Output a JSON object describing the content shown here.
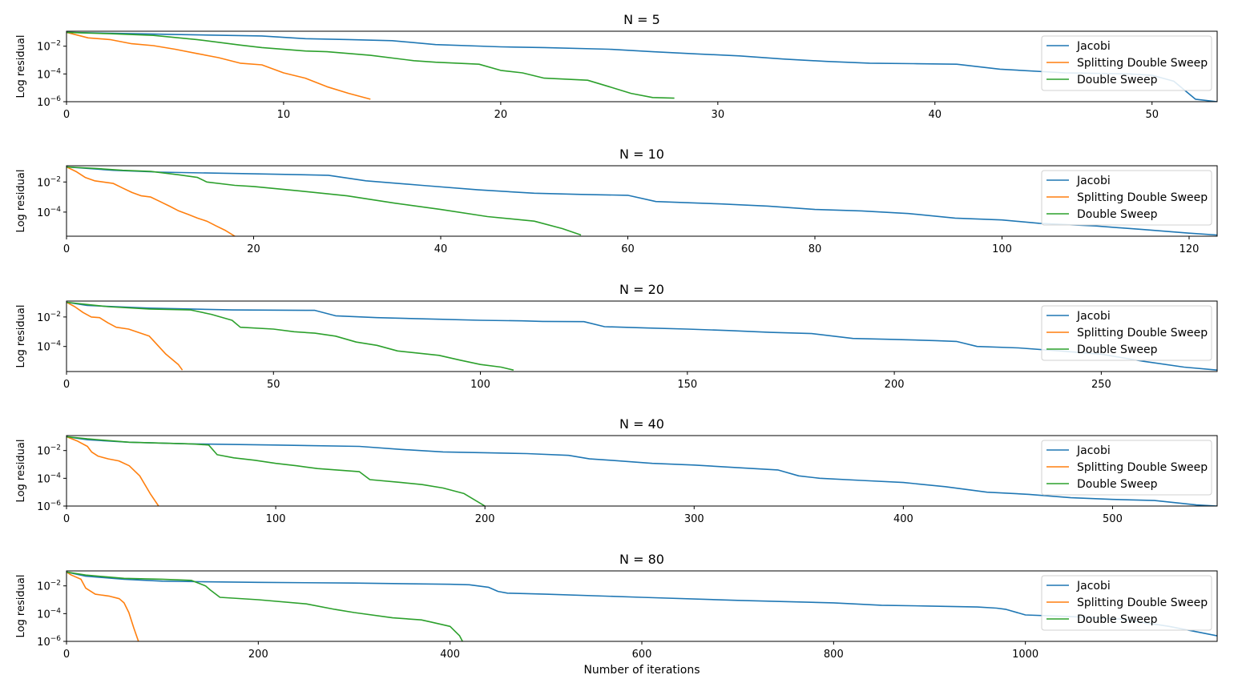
{
  "figure": {
    "xlabel": "Number of iterations"
  },
  "series_styles": [
    {
      "name": "Jacobi",
      "color": "#1f77b4"
    },
    {
      "name": "Splitting Double Sweep",
      "color": "#ff7f0e"
    },
    {
      "name": "Double Sweep",
      "color": "#2ca02c"
    }
  ],
  "chart_data": [
    {
      "type": "line",
      "title": "N = 5",
      "ylabel": "Log residual",
      "xlim": [
        0,
        53
      ],
      "ylim": [
        1e-06,
        0.12
      ],
      "yscale": "log",
      "xticks": [
        0,
        10,
        20,
        30,
        40,
        50
      ],
      "yticks": [
        0.01,
        0.0001,
        1e-06
      ],
      "ytick_labels": [
        "10^-2",
        "10^-4",
        "10^-6"
      ],
      "legend": "top-right",
      "series": [
        {
          "name": "Jacobi",
          "x": [
            0,
            5,
            9,
            11,
            13,
            15,
            17,
            20,
            22,
            25,
            27,
            29,
            31,
            33,
            35,
            37,
            39,
            41,
            43,
            46,
            49,
            50,
            51,
            52,
            53
          ],
          "y": [
            0.1,
            0.07,
            0.055,
            0.035,
            0.03,
            0.025,
            0.013,
            0.009,
            0.008,
            0.006,
            0.004,
            0.0028,
            0.002,
            0.0012,
            0.0008,
            0.0006,
            0.00055,
            0.0005,
            0.00022,
            0.00012,
            0.0001,
            8e-05,
            3e-05,
            1.5e-06,
            1e-06
          ]
        },
        {
          "name": "Splitting Double Sweep",
          "x": [
            0,
            1,
            2,
            3,
            4,
            5,
            6,
            7,
            8,
            9,
            10,
            11,
            12,
            13,
            14
          ],
          "y": [
            0.1,
            0.04,
            0.03,
            0.015,
            0.011,
            0.006,
            0.003,
            0.0015,
            0.0006,
            0.00045,
            0.00012,
            5e-05,
            1.2e-05,
            4e-06,
            1.5e-06
          ]
        },
        {
          "name": "Double Sweep",
          "x": [
            0,
            2,
            4,
            6,
            8,
            9,
            11,
            12,
            14,
            16,
            17,
            19,
            20,
            21,
            22,
            24,
            25,
            26,
            27,
            28
          ],
          "y": [
            0.1,
            0.08,
            0.06,
            0.03,
            0.012,
            0.008,
            0.0045,
            0.004,
            0.0022,
            0.0009,
            0.0007,
            0.0005,
            0.00018,
            0.00012,
            5e-05,
            3.5e-05,
            1.2e-05,
            4e-06,
            2e-06,
            1.8e-06
          ]
        }
      ]
    },
    {
      "type": "line",
      "title": "N = 10",
      "ylabel": "Log residual",
      "xlim": [
        0,
        123
      ],
      "ylim": [
        2.5e-06,
        0.12
      ],
      "yscale": "log",
      "xticks": [
        0,
        20,
        40,
        60,
        80,
        100,
        120
      ],
      "yticks": [
        0.01,
        0.0001
      ],
      "ytick_labels": [
        "10^-2",
        "10^-4"
      ],
      "legend": "top-right",
      "series": [
        {
          "name": "Jacobi",
          "x": [
            0,
            5,
            10,
            20,
            28,
            32,
            38,
            44,
            50,
            55,
            60,
            63,
            65,
            70,
            75,
            80,
            85,
            90,
            95,
            100,
            104,
            110,
            115,
            120,
            123
          ],
          "y": [
            0.1,
            0.06,
            0.045,
            0.035,
            0.028,
            0.012,
            0.006,
            0.003,
            0.0018,
            0.0015,
            0.0013,
            0.0005,
            0.00045,
            0.00035,
            0.00025,
            0.00015,
            0.00012,
            8e-05,
            4e-05,
            3e-05,
            1.8e-05,
            1.2e-05,
            7e-06,
            4e-06,
            3e-06
          ]
        },
        {
          "name": "Splitting Double Sweep",
          "x": [
            0,
            1,
            2,
            3,
            5,
            6,
            7,
            8,
            9,
            10,
            11,
            12,
            13,
            14,
            15,
            16,
            17,
            18
          ],
          "y": [
            0.1,
            0.05,
            0.02,
            0.012,
            0.008,
            0.004,
            0.002,
            0.0012,
            0.001,
            0.0005,
            0.00025,
            0.00012,
            7e-05,
            4e-05,
            2.5e-05,
            1.2e-05,
            6e-06,
            2.5e-06
          ]
        },
        {
          "name": "Double Sweep",
          "x": [
            0,
            3,
            6,
            9,
            12,
            14,
            15,
            18,
            20,
            25,
            30,
            35,
            40,
            45,
            50,
            53,
            55
          ],
          "y": [
            0.1,
            0.08,
            0.06,
            0.05,
            0.03,
            0.02,
            0.01,
            0.006,
            0.005,
            0.0025,
            0.0012,
            0.0004,
            0.00015,
            5e-05,
            2.5e-05,
            8e-06,
            3e-06
          ]
        }
      ]
    },
    {
      "type": "line",
      "title": "N = 20",
      "ylabel": "Log residual",
      "xlim": [
        0,
        278
      ],
      "ylim": [
        2e-06,
        0.12
      ],
      "yscale": "log",
      "xticks": [
        0,
        50,
        100,
        150,
        200,
        250
      ],
      "yticks": [
        0.01,
        0.0001
      ],
      "ytick_labels": [
        "10^-2",
        "10^-4"
      ],
      "legend": "top-right",
      "series": [
        {
          "name": "Jacobi",
          "x": [
            0,
            5,
            20,
            40,
            60,
            65,
            75,
            90,
            100,
            110,
            115,
            125,
            130,
            140,
            150,
            160,
            170,
            180,
            190,
            200,
            210,
            215,
            220,
            230,
            240,
            250,
            260,
            270,
            278
          ],
          "y": [
            0.1,
            0.06,
            0.04,
            0.03,
            0.028,
            0.012,
            0.009,
            0.007,
            0.006,
            0.0055,
            0.005,
            0.0048,
            0.0022,
            0.0018,
            0.0015,
            0.0012,
            0.0009,
            0.00075,
            0.00035,
            0.0003,
            0.00025,
            0.00022,
            0.0001,
            8e-05,
            5e-05,
            3e-05,
            1e-05,
            4e-06,
            2.5e-06
          ]
        },
        {
          "name": "Splitting Double Sweep",
          "x": [
            0,
            2,
            4,
            6,
            8,
            10,
            12,
            15,
            20,
            24,
            27,
            28
          ],
          "y": [
            0.1,
            0.05,
            0.02,
            0.01,
            0.009,
            0.004,
            0.002,
            0.0015,
            0.0005,
            3e-05,
            6e-06,
            2.5e-06
          ]
        },
        {
          "name": "Double Sweep",
          "x": [
            0,
            5,
            10,
            20,
            30,
            35,
            40,
            42,
            50,
            55,
            60,
            65,
            70,
            75,
            80,
            85,
            90,
            95,
            100,
            105,
            108
          ],
          "y": [
            0.1,
            0.07,
            0.05,
            0.035,
            0.03,
            0.015,
            0.006,
            0.002,
            0.0015,
            0.001,
            0.0008,
            0.0005,
            0.0002,
            0.00012,
            5e-05,
            3.5e-05,
            2.5e-05,
            1.2e-05,
            6e-06,
            4e-06,
            2.5e-06
          ]
        }
      ]
    },
    {
      "type": "line",
      "title": "N = 40",
      "ylabel": "Log residual",
      "xlim": [
        0,
        550
      ],
      "ylim": [
        1e-06,
        0.12
      ],
      "yscale": "log",
      "xticks": [
        0,
        100,
        200,
        300,
        400,
        500
      ],
      "yticks": [
        0.01,
        0.0001,
        1e-06
      ],
      "ytick_labels": [
        "10^-2",
        "10^-4",
        "10^-6"
      ],
      "legend": "top-right",
      "series": [
        {
          "name": "Jacobi",
          "x": [
            0,
            10,
            30,
            60,
            100,
            140,
            160,
            180,
            200,
            220,
            240,
            250,
            260,
            280,
            300,
            320,
            340,
            350,
            360,
            380,
            400,
            420,
            440,
            460,
            480,
            500,
            520,
            540,
            550
          ],
          "y": [
            0.1,
            0.06,
            0.04,
            0.03,
            0.025,
            0.02,
            0.012,
            0.008,
            0.007,
            0.006,
            0.0045,
            0.0025,
            0.002,
            0.0012,
            0.0009,
            0.0006,
            0.0004,
            0.00015,
            0.0001,
            7e-05,
            5e-05,
            2.5e-05,
            1e-05,
            7e-06,
            4e-06,
            3e-06,
            2.5e-06,
            1.2e-06,
            1e-06
          ]
        },
        {
          "name": "Splitting Double Sweep",
          "x": [
            0,
            5,
            10,
            12,
            15,
            20,
            25,
            30,
            35,
            40,
            44
          ],
          "y": [
            0.1,
            0.05,
            0.02,
            0.008,
            0.004,
            0.0025,
            0.0018,
            0.0008,
            0.00015,
            8e-06,
            1e-06
          ]
        },
        {
          "name": "Double Sweep",
          "x": [
            0,
            10,
            30,
            60,
            68,
            72,
            80,
            90,
            100,
            110,
            120,
            140,
            145,
            160,
            170,
            180,
            190,
            200
          ],
          "y": [
            0.1,
            0.07,
            0.04,
            0.03,
            0.025,
            0.005,
            0.003,
            0.002,
            0.0012,
            0.0008,
            0.0005,
            0.0003,
            8e-05,
            5e-05,
            3.5e-05,
            2e-05,
            8e-06,
            1e-06
          ]
        }
      ]
    },
    {
      "type": "line",
      "title": "N = 80",
      "ylabel": "Log residual",
      "xlim": [
        0,
        1200
      ],
      "ylim": [
        1e-06,
        0.12
      ],
      "yscale": "log",
      "xticks": [
        0,
        200,
        400,
        600,
        800,
        1000
      ],
      "yticks": [
        0.01,
        0.0001,
        1e-06
      ],
      "ytick_labels": [
        "10^-2",
        "10^-4",
        "10^-6"
      ],
      "legend": "top-right",
      "series": [
        {
          "name": "Jacobi",
          "x": [
            0,
            20,
            60,
            100,
            140,
            200,
            300,
            400,
            420,
            440,
            450,
            460,
            500,
            600,
            700,
            800,
            850,
            900,
            950,
            970,
            980,
            1000,
            1050,
            1100,
            1150,
            1200
          ],
          "y": [
            0.1,
            0.05,
            0.03,
            0.022,
            0.02,
            0.018,
            0.016,
            0.013,
            0.012,
            0.008,
            0.004,
            0.003,
            0.0025,
            0.0015,
            0.0009,
            0.0006,
            0.0004,
            0.00035,
            0.0003,
            0.00025,
            0.0002,
            8e-05,
            6e-05,
            4e-05,
            1.2e-05,
            2.5e-06
          ]
        },
        {
          "name": "Splitting Double Sweep",
          "x": [
            0,
            5,
            15,
            20,
            30,
            45,
            55,
            60,
            65,
            70,
            75
          ],
          "y": [
            0.1,
            0.06,
            0.03,
            0.007,
            0.0025,
            0.0018,
            0.0012,
            0.0006,
            0.00012,
            1e-05,
            1e-06
          ]
        },
        {
          "name": "Double Sweep",
          "x": [
            0,
            20,
            60,
            100,
            130,
            145,
            150,
            160,
            200,
            250,
            280,
            300,
            340,
            370,
            380,
            400,
            410,
            413
          ],
          "y": [
            0.1,
            0.06,
            0.035,
            0.03,
            0.025,
            0.01,
            0.005,
            0.0015,
            0.001,
            0.0005,
            0.0002,
            0.00012,
            5e-05,
            3.5e-05,
            2.5e-05,
            1.2e-05,
            2.5e-06,
            1e-06
          ]
        }
      ]
    }
  ]
}
